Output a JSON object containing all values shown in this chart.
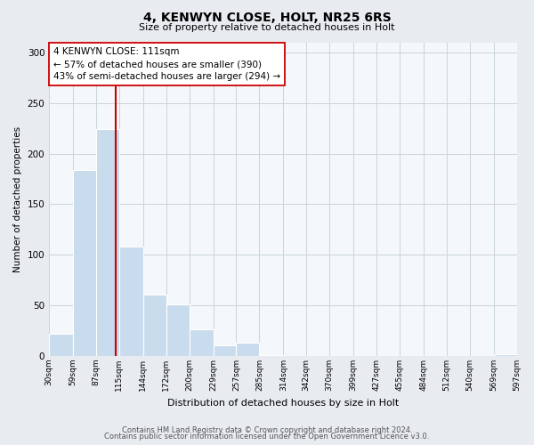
{
  "title": "4, KENWYN CLOSE, HOLT, NR25 6RS",
  "subtitle": "Size of property relative to detached houses in Holt",
  "xlabel": "Distribution of detached houses by size in Holt",
  "ylabel": "Number of detached properties",
  "bar_color": "#c8dced",
  "reference_line_color": "#cc0000",
  "annotation_text_line1": "4 KENWYN CLOSE: 111sqm",
  "annotation_text_line2": "← 57% of detached houses are smaller (390)",
  "annotation_text_line3": "43% of semi-detached houses are larger (294) →",
  "annotation_box_facecolor": "white",
  "annotation_box_edgecolor": "#cc0000",
  "bin_edges": [
    30,
    59,
    87,
    115,
    144,
    172,
    200,
    229,
    257,
    285,
    314,
    342,
    370,
    399,
    427,
    455,
    484,
    512,
    540,
    569,
    597
  ],
  "bar_heights": [
    22,
    184,
    224,
    108,
    61,
    51,
    26,
    11,
    13,
    1,
    0,
    0,
    0,
    0,
    0,
    0,
    0,
    0,
    0,
    2
  ],
  "reference_line_x": 111,
  "ylim": [
    0,
    310
  ],
  "yticks": [
    0,
    50,
    100,
    150,
    200,
    250,
    300
  ],
  "background_color": "#e8ecf0",
  "plot_background_color": "#f5f8fa",
  "grid_color": "#c8d4dc",
  "footer_line1": "Contains HM Land Registry data © Crown copyright and database right 2024.",
  "footer_line2": "Contains public sector information licensed under the Open Government Licence v3.0."
}
